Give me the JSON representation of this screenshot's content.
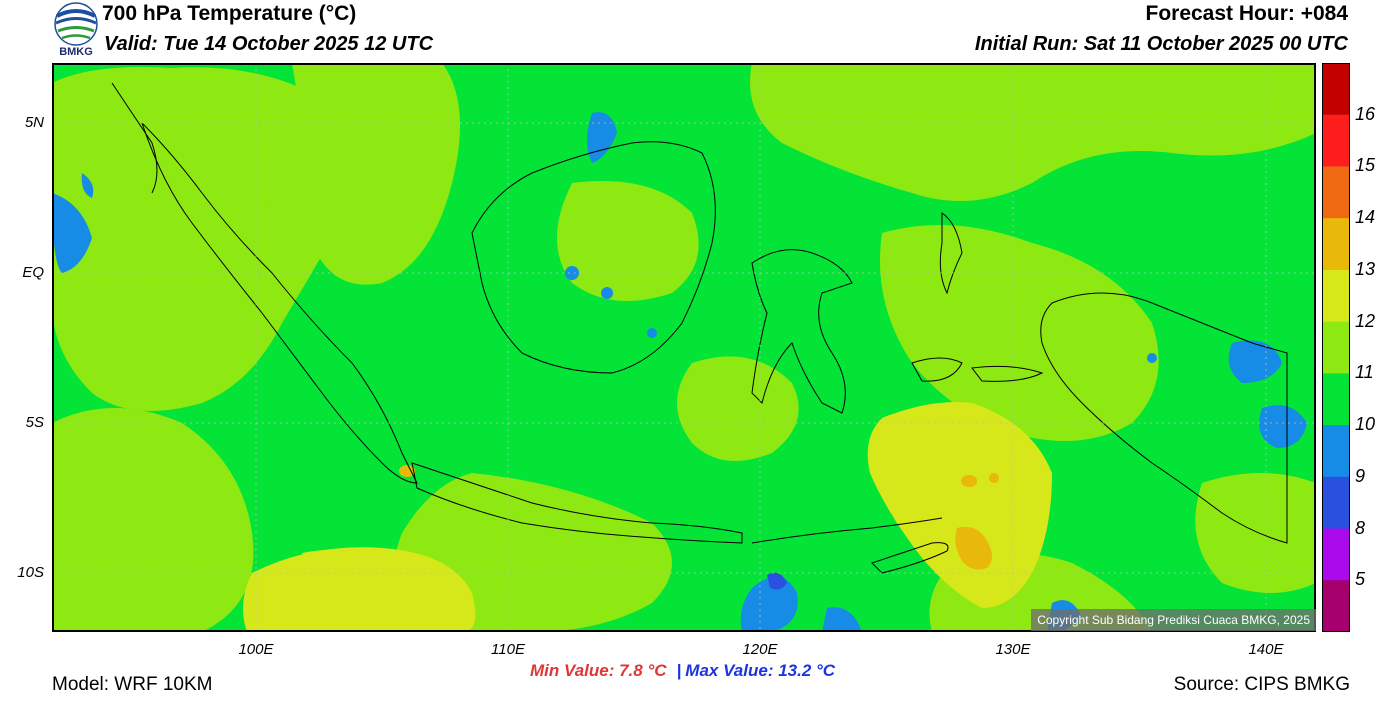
{
  "header": {
    "title": "700 hPa Temperature (°C)",
    "valid": "Valid: Tue 14 October 2025 12 UTC",
    "forecast_hour": "Forecast Hour: +084",
    "initial_run": "Initial Run: Sat 11 October 2025 00 UTC",
    "logo_text": "BMKG"
  },
  "map": {
    "lat_ticks": [
      "5N",
      "EQ",
      "5S",
      "10S"
    ],
    "lon_ticks": [
      "100E",
      "110E",
      "120E",
      "130E",
      "140E"
    ],
    "copyright": "Copyright Sub Bidang Prediksi Cuaca BMKG, 2025"
  },
  "colorbar": {
    "labels": [
      "16",
      "15",
      "14",
      "13",
      "12",
      "11",
      "10",
      "9",
      "8",
      "5"
    ],
    "colors": [
      "#c20000",
      "#ff1e1e",
      "#ef6a12",
      "#e8b80a",
      "#d6e81a",
      "#8ee812",
      "#04e436",
      "#168ce6",
      "#2a50e0",
      "#aa0aec",
      "#a6006e"
    ]
  },
  "stats": {
    "min_label": "Min Value: 7.8 °C",
    "separator": "|",
    "max_label": "Max Value: 13.2 °C"
  },
  "footer": {
    "model": "Model: WRF 10KM",
    "source": "Source: CIPS BMKG"
  }
}
